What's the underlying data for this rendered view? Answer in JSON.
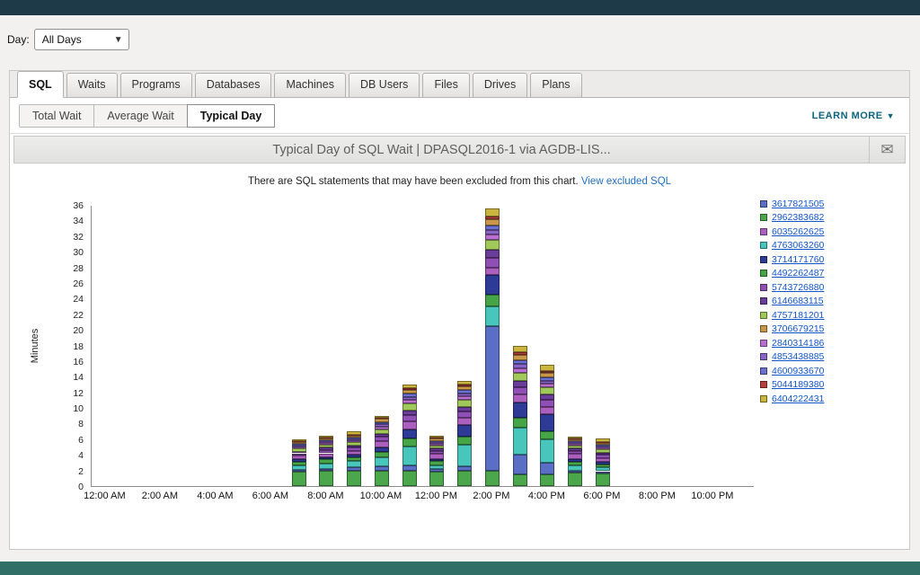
{
  "colors": {
    "topbar": "#1e3948",
    "bottombar": "#2f6f66",
    "learnmore": "#0c647f",
    "link": "#1155cc"
  },
  "day_filter": {
    "label": "Day:",
    "value": "All Days"
  },
  "tabs": [
    "SQL",
    "Waits",
    "Programs",
    "Databases",
    "Machines",
    "DB Users",
    "Files",
    "Drives",
    "Plans"
  ],
  "active_tab": "SQL",
  "subtabs": [
    "Total Wait",
    "Average Wait",
    "Typical Day"
  ],
  "active_subtab": "Typical Day",
  "learn_more_label": "LEARN MORE",
  "chart_header": {
    "title": "Typical Day of SQL Wait  |  DPASQL2016-1 via AGDB-LIS..."
  },
  "notice": {
    "text": "There are SQL statements that may have been excluded from this chart. ",
    "link": "View excluded SQL"
  },
  "chart_data": {
    "type": "bar",
    "stacked": true,
    "title": "Typical Day of SQL Wait | DPASQL2016-1 via AGDB-LIS...",
    "xlabel": "",
    "ylabel": "Minutes",
    "ylim": [
      0,
      36
    ],
    "ytick_step": 2,
    "grid": false,
    "legend_position": "right",
    "x_axis_labels": [
      "12:00 AM",
      "2:00 AM",
      "4:00 AM",
      "6:00 AM",
      "8:00 AM",
      "10:00 AM",
      "12:00 PM",
      "2:00 PM",
      "4:00 PM",
      "6:00 PM",
      "8:00 PM",
      "10:00 PM"
    ],
    "bar_hours": [
      7,
      8,
      9,
      10,
      11,
      12,
      13,
      14,
      15,
      16,
      17,
      18
    ],
    "bar_totals_minutes": [
      6.0,
      6.5,
      7.0,
      9.0,
      13.0,
      6.4,
      13.5,
      35.5,
      18.0,
      15.4,
      6.2,
      6.1
    ],
    "legend": [
      "3617821505",
      "2962383682",
      "6035262625",
      "4763063260",
      "3714171760",
      "4492262487",
      "5743726880",
      "6146683115",
      "4757181201",
      "3706679215",
      "2840314186",
      "4853438885",
      "4600933670",
      "5044189380",
      "6404222431"
    ],
    "series": [
      {
        "name": "2962383682",
        "color": "#4ca64c",
        "values": [
          1.8,
          1.9,
          2.0,
          2.0,
          2.0,
          1.8,
          2.0,
          2.0,
          1.5,
          1.5,
          1.7,
          1.6
        ]
      },
      {
        "name": "3617821505",
        "color": "#5b6ec5",
        "values": [
          0.3,
          0.3,
          0.4,
          0.5,
          0.6,
          0.4,
          0.5,
          18.5,
          2.5,
          1.5,
          0.3,
          0.3
        ]
      },
      {
        "name": "4763063260",
        "color": "#49c6bc",
        "values": [
          0.6,
          0.7,
          0.8,
          1.2,
          2.5,
          0.5,
          2.8,
          2.5,
          3.5,
          3.0,
          0.6,
          0.5
        ]
      },
      {
        "name": "4492262487",
        "color": "#46a546",
        "values": [
          0.4,
          0.5,
          0.5,
          0.7,
          1.0,
          0.5,
          1.0,
          1.5,
          1.2,
          1.0,
          0.5,
          0.4
        ]
      },
      {
        "name": "3714171760",
        "color": "#2d3a96",
        "values": [
          0.3,
          0.3,
          0.3,
          0.6,
          1.2,
          0.3,
          1.5,
          2.5,
          2.0,
          2.2,
          0.4,
          0.3
        ]
      },
      {
        "name": "6035262625",
        "color": "#ad5fc0",
        "values": [
          0.5,
          0.5,
          0.5,
          0.8,
          1.0,
          0.6,
          0.9,
          1.0,
          1.0,
          0.9,
          0.6,
          0.5
        ]
      },
      {
        "name": "5743726880",
        "color": "#8f4fb5",
        "values": [
          0.3,
          0.4,
          0.4,
          0.5,
          0.8,
          0.4,
          0.8,
          1.2,
          1.0,
          0.9,
          0.4,
          0.4
        ]
      },
      {
        "name": "6146683115",
        "color": "#6a3d9a",
        "values": [
          0.2,
          0.3,
          0.3,
          0.4,
          0.6,
          0.3,
          0.6,
          1.0,
          0.8,
          0.7,
          0.3,
          0.3
        ]
      },
      {
        "name": "4757181201",
        "color": "#a0c85a",
        "values": [
          0.4,
          0.4,
          0.4,
          0.6,
          0.9,
          0.4,
          0.9,
          1.3,
          1.0,
          0.9,
          0.4,
          0.4
        ]
      },
      {
        "name": "2840314186",
        "color": "#b86fd0",
        "values": [
          0.2,
          0.2,
          0.2,
          0.3,
          0.4,
          0.2,
          0.5,
          0.7,
          0.6,
          0.5,
          0.2,
          0.2
        ]
      },
      {
        "name": "4853438885",
        "color": "#8a63c8",
        "values": [
          0.2,
          0.2,
          0.2,
          0.3,
          0.4,
          0.2,
          0.4,
          0.6,
          0.5,
          0.4,
          0.2,
          0.2
        ]
      },
      {
        "name": "4600933670",
        "color": "#6a6fd0",
        "values": [
          0.2,
          0.2,
          0.2,
          0.3,
          0.4,
          0.2,
          0.4,
          0.6,
          0.5,
          0.4,
          0.2,
          0.2
        ]
      },
      {
        "name": "3706679215",
        "color": "#c9974a",
        "values": [
          0.2,
          0.2,
          0.3,
          0.4,
          0.5,
          0.3,
          0.5,
          0.8,
          0.7,
          0.6,
          0.2,
          0.2
        ]
      },
      {
        "name": "5044189380",
        "color": "#b5413a",
        "values": [
          0.1,
          0.1,
          0.1,
          0.2,
          0.2,
          0.1,
          0.2,
          0.3,
          0.3,
          0.2,
          0.1,
          0.1
        ]
      },
      {
        "name": "6404222431",
        "color": "#cbb53f",
        "values": [
          0.3,
          0.3,
          0.4,
          0.2,
          0.5,
          0.3,
          0.5,
          1.0,
          0.9,
          0.8,
          0.1,
          0.5
        ]
      }
    ]
  }
}
